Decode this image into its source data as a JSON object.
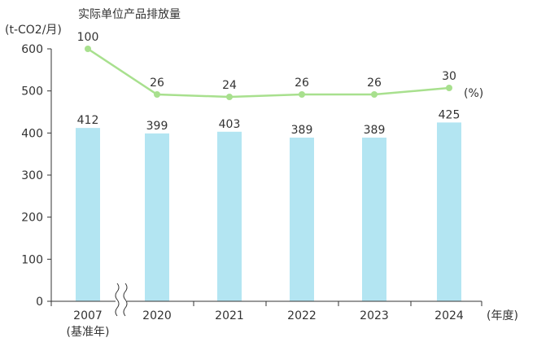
{
  "chart_data": {
    "type": "bar",
    "title": "",
    "ylabel": "(t-CO2/月)",
    "xlabel": "(年度)",
    "ylim": [
      0,
      600
    ],
    "yticks": [
      0,
      100,
      200,
      300,
      400,
      500,
      600
    ],
    "categories": [
      "2007",
      "2020",
      "2021",
      "2022",
      "2023",
      "2024"
    ],
    "category_sublabels": [
      "(基准年)",
      "",
      "",
      "",
      "",
      ""
    ],
    "axis_break_after_category": "2007",
    "series": [
      {
        "type": "bar",
        "values": [
          412,
          399,
          403,
          389,
          389,
          425
        ],
        "color": "#b3e5f2"
      },
      {
        "type": "line",
        "name": "实际单位产品排放量",
        "unit_label": "(%)",
        "values": [
          100,
          26,
          24,
          26,
          26,
          30
        ],
        "color": "#a8e08e"
      }
    ],
    "colors": {
      "axis": "#333333",
      "bar": "#b3e5f2",
      "line": "#a8e08e"
    }
  }
}
